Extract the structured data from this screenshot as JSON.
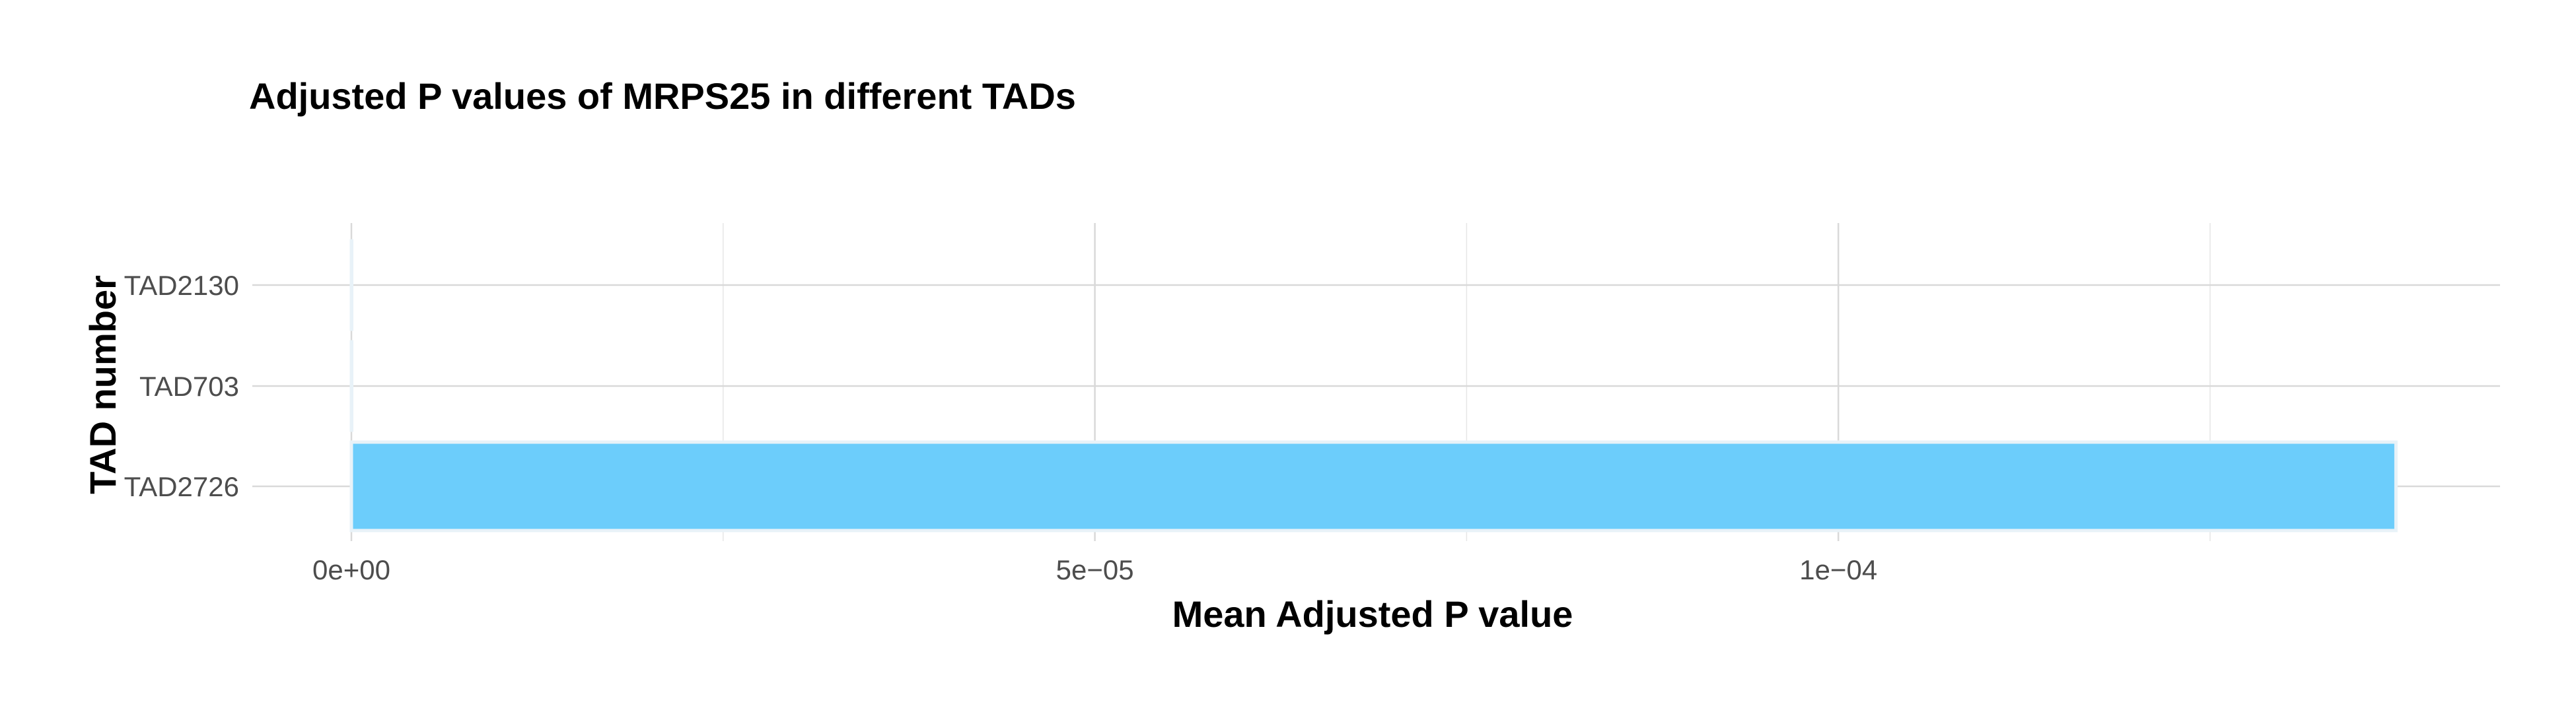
{
  "chart_data": {
    "type": "bar",
    "orientation": "horizontal",
    "title": "Adjusted P values of MRPS25 in different TADs",
    "xlabel": "Mean Adjusted P value",
    "ylabel": "TAD number",
    "categories": [
      "TAD2726",
      "TAD703",
      "TAD2130"
    ],
    "values": [
      0.0001375,
      1e-13,
      1e-13
    ],
    "xlim": [
      0,
      0.0001445
    ],
    "x_ticks": [
      {
        "value": 0,
        "label": "0e+00"
      },
      {
        "value": 5e-05,
        "label": "5e−05"
      },
      {
        "value": 0.0001,
        "label": "1e−04"
      }
    ],
    "x_minor_ticks": [
      2.5e-05,
      7.5e-05,
      0.000125
    ],
    "grid": true,
    "legend": "none",
    "bar_color": "#6CCDFB",
    "bar_edge_color": "#E8F2F8",
    "grid_color": "#D9D9D9"
  }
}
